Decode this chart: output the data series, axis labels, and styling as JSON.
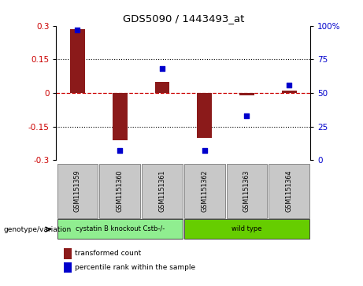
{
  "title": "GDS5090 / 1443493_at",
  "samples": [
    "GSM1151359",
    "GSM1151360",
    "GSM1151361",
    "GSM1151362",
    "GSM1151363",
    "GSM1151364"
  ],
  "bar_values": [
    0.285,
    -0.21,
    0.05,
    -0.2,
    -0.01,
    0.01
  ],
  "percentile_values": [
    97,
    7,
    68,
    7,
    33,
    56
  ],
  "bar_color": "#8B1A1A",
  "dot_color": "#0000CC",
  "ylim_left": [
    -0.3,
    0.3
  ],
  "ylim_right": [
    0,
    100
  ],
  "yticks_left": [
    -0.3,
    -0.15,
    0,
    0.15,
    0.3
  ],
  "yticks_right": [
    0,
    25,
    50,
    75,
    100
  ],
  "zero_line_color": "#CC0000",
  "dotted_line_color": "#000000",
  "bg_color": "#FFFFFF",
  "groups": [
    {
      "label": "cystatin B knockout Cstb-/-",
      "start": 0,
      "end": 2,
      "color": "#90EE90"
    },
    {
      "label": "wild type",
      "start": 3,
      "end": 5,
      "color": "#66CD00"
    }
  ],
  "group_label": "genotype/variation",
  "legend_bar_label": "transformed count",
  "legend_dot_label": "percentile rank within the sample",
  "sample_box_color": "#C8C8C8",
  "tick_fontsize": 7.5,
  "bar_width": 0.35
}
